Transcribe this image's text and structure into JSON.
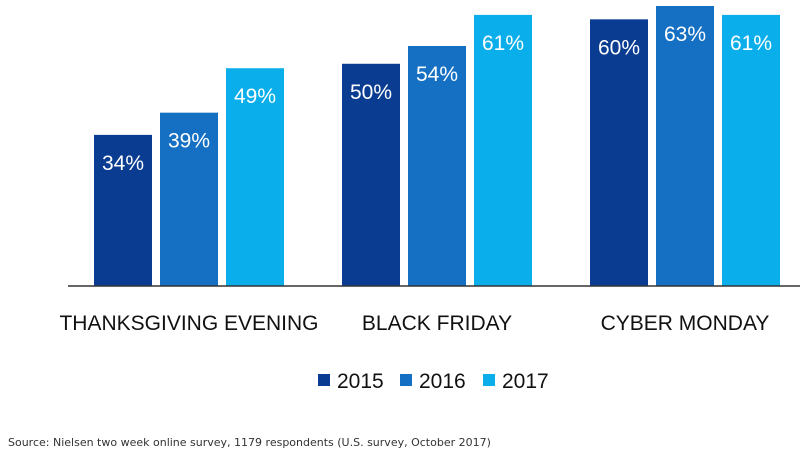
{
  "chart_data": {
    "type": "bar",
    "categories": [
      "THANKSGIVING EVENING",
      "BLACK FRIDAY",
      "CYBER MONDAY"
    ],
    "series": [
      {
        "name": "2015",
        "values": [
          34,
          50,
          60
        ],
        "labels": [
          "34%",
          "50%",
          "60%"
        ],
        "color": "#0a3d91"
      },
      {
        "name": "2016",
        "values": [
          39,
          54,
          63
        ],
        "labels": [
          "39%",
          "54%",
          "63%"
        ],
        "color": "#1570c3"
      },
      {
        "name": "2017",
        "values": [
          49,
          61,
          61
        ],
        "labels": [
          "49%",
          "61%",
          "61%"
        ],
        "color": "#0aaeea"
      }
    ],
    "ylim": [
      0,
      63
    ],
    "grid": false,
    "legend_position": "bottom"
  },
  "source_text": "Source: Nielsen two week online survey, 1179 respondents (U.S. survey, October 2017)"
}
